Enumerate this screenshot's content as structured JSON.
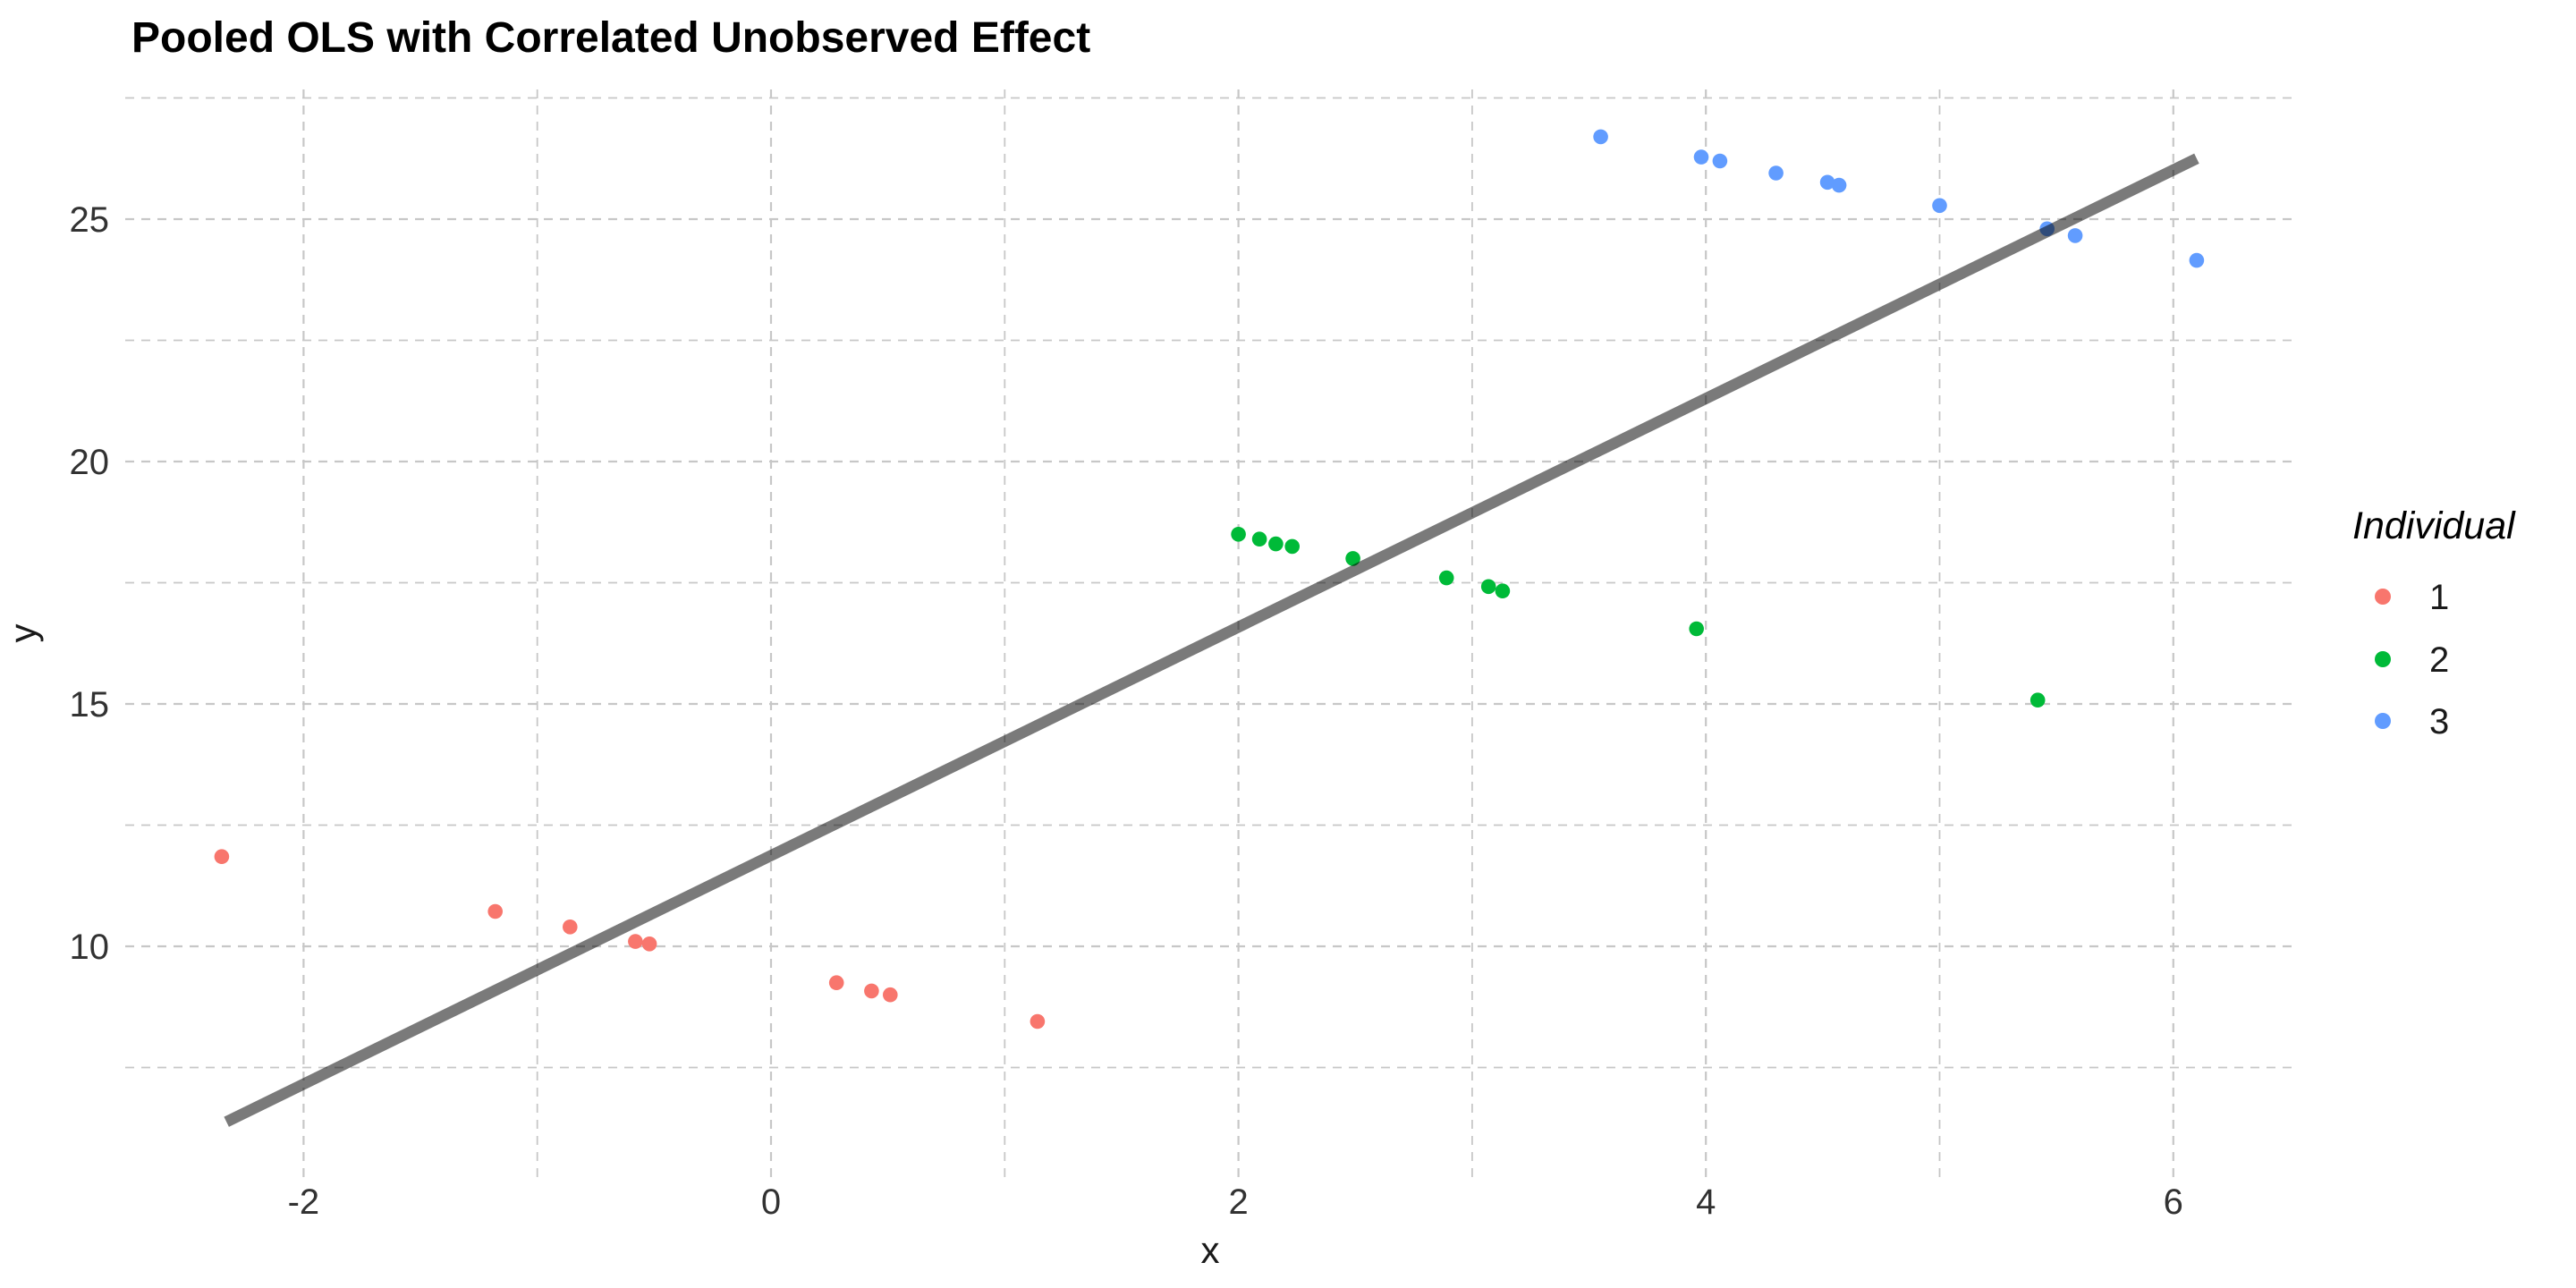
{
  "title": "Pooled OLS with Correlated Unobserved Effect",
  "chart_data": {
    "type": "scatter",
    "title": "Pooled OLS with Correlated Unobserved Effect",
    "xlabel": "x",
    "ylabel": "y",
    "xlim": [
      -2.76,
      6.52
    ],
    "ylim": [
      5.22,
      27.67
    ],
    "x_major_ticks": [
      -2,
      0,
      2,
      4,
      6
    ],
    "y_major_ticks": [
      10,
      15,
      20,
      25
    ],
    "x_minor_ticks": [
      -1,
      1,
      3,
      5
    ],
    "y_minor_ticks": [
      7.5,
      12.5,
      17.5,
      22.5,
      27.5
    ],
    "grid": "dashed, light gray, major and minor, on white background",
    "legend_title": "Individual",
    "legend_position": "right",
    "series": [
      {
        "name": "1",
        "color": "#F8766D",
        "points": [
          [
            -2.35,
            11.85
          ],
          [
            -1.18,
            10.72
          ],
          [
            -0.86,
            10.4
          ],
          [
            -0.58,
            10.1
          ],
          [
            -0.52,
            10.05
          ],
          [
            0.28,
            9.25
          ],
          [
            0.43,
            9.08
          ],
          [
            0.51,
            9.0
          ],
          [
            1.14,
            8.45
          ]
        ]
      },
      {
        "name": "2",
        "color": "#00BA38",
        "points": [
          [
            2.0,
            18.5
          ],
          [
            2.09,
            18.4
          ],
          [
            2.16,
            18.3
          ],
          [
            2.23,
            18.25
          ],
          [
            2.49,
            18.0
          ],
          [
            2.89,
            17.6
          ],
          [
            3.07,
            17.42
          ],
          [
            3.13,
            17.33
          ],
          [
            3.96,
            16.55
          ],
          [
            5.42,
            15.08
          ]
        ]
      },
      {
        "name": "3",
        "color": "#619CFF",
        "points": [
          [
            3.55,
            26.7
          ],
          [
            3.98,
            26.28
          ],
          [
            4.06,
            26.2
          ],
          [
            4.3,
            25.95
          ],
          [
            4.52,
            25.76
          ],
          [
            4.57,
            25.7
          ],
          [
            5.0,
            25.28
          ],
          [
            5.46,
            24.8
          ],
          [
            5.58,
            24.66
          ],
          [
            6.1,
            24.15
          ]
        ]
      }
    ],
    "fit_line": {
      "label": "pooled OLS fit line",
      "color": "#7a7a7a",
      "x1": -2.33,
      "y1": 6.38,
      "x2": 6.1,
      "y2": 26.25
    }
  }
}
